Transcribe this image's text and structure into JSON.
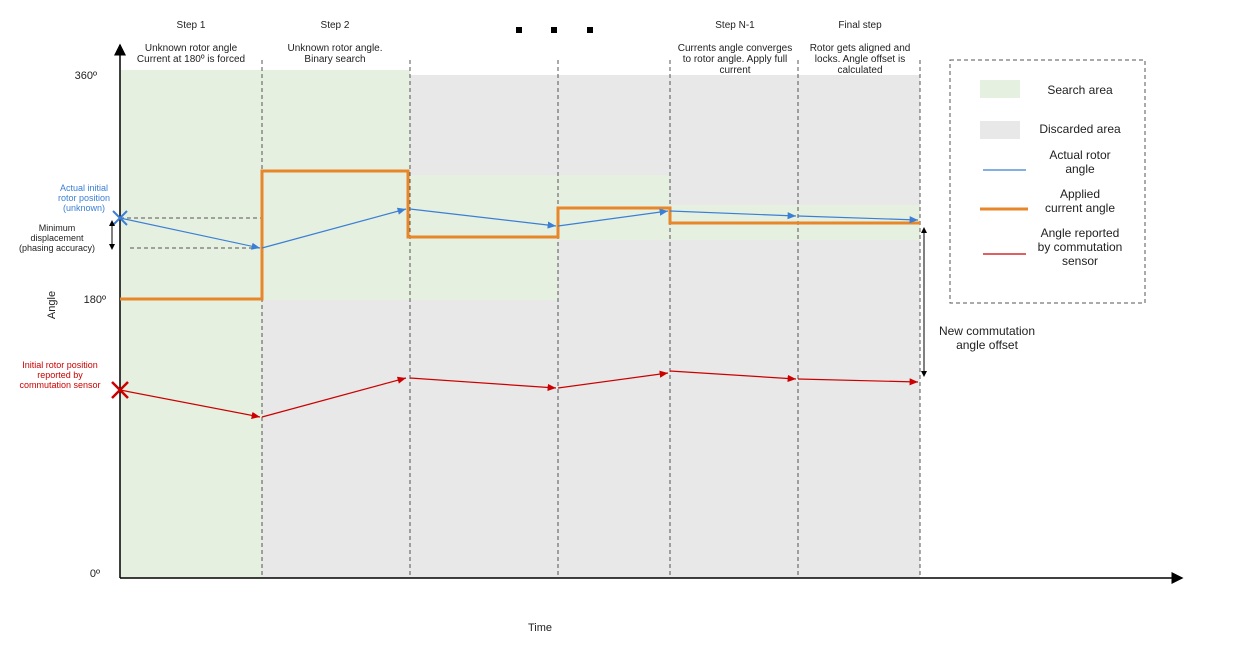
{
  "steps": [
    {
      "title": "Step 1",
      "description": [
        "Unknown rotor angle",
        "Current at 180º is forced"
      ]
    },
    {
      "title": "Step 2",
      "description": [
        "Unknown rotor angle.",
        "Binary search"
      ]
    },
    {
      "title": "Step N-1",
      "description": [
        "Currents angle converges",
        "to rotor angle. Apply full",
        "current"
      ]
    },
    {
      "title": "Final step",
      "description": [
        "Rotor gets aligned and",
        "locks. Angle offset is",
        "calculated"
      ]
    }
  ],
  "axis": {
    "y_label": "Angle",
    "x_label": "Time",
    "y_ticks": [
      "360º",
      "180º",
      "0º"
    ]
  },
  "annotations": {
    "actual_initial": [
      "Actual initial",
      "rotor position",
      "(unknown)"
    ],
    "min_displacement": [
      "Minimum",
      "displacement",
      "(phasing accuracy)"
    ],
    "initial_reported": [
      "Initial rotor position",
      "reported by",
      "commutation sensor"
    ],
    "offset": [
      "New commutation",
      "angle offset"
    ]
  },
  "legend": [
    {
      "label": [
        "Search area"
      ]
    },
    {
      "label": [
        "Discarded area"
      ]
    },
    {
      "label": [
        "Actual rotor",
        "angle"
      ]
    },
    {
      "label": [
        "Applied",
        "current angle"
      ]
    },
    {
      "label": [
        "Angle reported",
        "by commutation",
        "sensor"
      ]
    }
  ]
}
